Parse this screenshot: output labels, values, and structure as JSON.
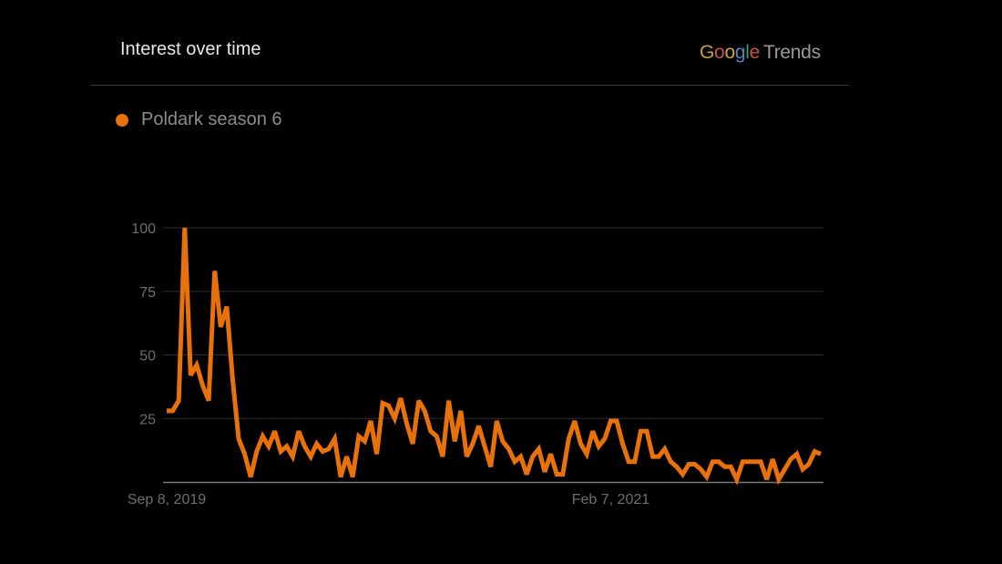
{
  "header": {
    "title": "Interest over time",
    "logo_google": "Google",
    "logo_trends": "Trends",
    "logo_colors": [
      "#c69a4a",
      "#c8503f",
      "#d2a23d",
      "#4f86c6",
      "#4a9a5a",
      "#c8503f"
    ]
  },
  "legend": {
    "label": "Poldark season 6",
    "color": "#e8710a"
  },
  "chart_data": {
    "type": "line",
    "title": "Interest over time",
    "xlabel": "",
    "ylabel": "",
    "ylim": [
      0,
      100
    ],
    "yticks": [
      "100",
      "75",
      "50",
      "25"
    ],
    "ytick_values": [
      100,
      75,
      50,
      25
    ],
    "xtick_labels": [
      "Sep 8, 2019",
      "Feb 7, 2021"
    ],
    "xtick_index": [
      0,
      74
    ],
    "grid": true,
    "legend_position": "top-left",
    "series": [
      {
        "name": "Poldark season 6",
        "color": "#e8710a",
        "values": [
          28,
          28,
          32,
          100,
          42,
          46,
          38,
          32,
          83,
          61,
          69,
          40,
          17,
          11,
          2,
          12,
          18,
          14,
          20,
          12,
          14,
          10,
          20,
          14,
          10,
          15,
          12,
          13,
          17,
          2,
          10,
          2,
          18,
          16,
          24,
          11,
          31,
          30,
          25,
          33,
          23,
          15,
          32,
          28,
          20,
          18,
          10,
          32,
          16,
          28,
          10,
          15,
          22,
          14,
          6,
          24,
          16,
          13,
          8,
          10,
          3,
          10,
          13,
          4,
          11,
          3,
          3,
          17,
          24,
          15,
          11,
          20,
          14,
          17,
          24,
          24,
          15,
          8,
          8,
          20,
          20,
          10,
          10,
          13,
          8,
          6,
          3,
          7,
          7,
          5,
          2,
          8,
          8,
          6,
          6,
          1,
          8,
          8,
          8,
          8,
          1,
          9,
          1,
          5,
          9,
          11,
          5,
          7,
          12,
          11
        ]
      }
    ]
  }
}
